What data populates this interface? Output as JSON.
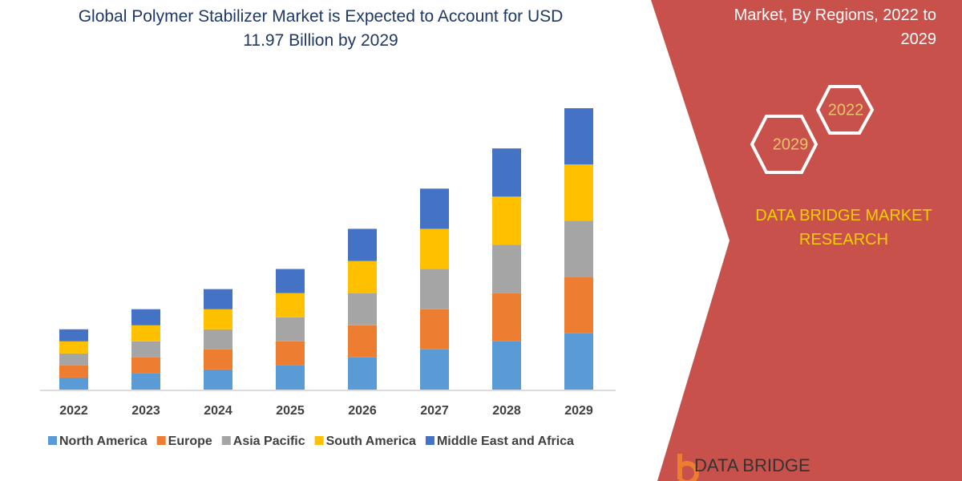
{
  "chart_data": {
    "type": "stacked_bar",
    "title": "Global Polymer Stabilizer Market is Expected to Account for USD 11.97 Billion by 2029",
    "categories": [
      "2022",
      "2023",
      "2024",
      "2025",
      "2026",
      "2027",
      "2028",
      "2029"
    ],
    "series": [
      {
        "name": "North America",
        "color": "#5b9bd5",
        "values": [
          15,
          20,
          25,
          30,
          40,
          50,
          60,
          70
        ]
      },
      {
        "name": "Europe",
        "color": "#ed7d31",
        "values": [
          15,
          20,
          25,
          30,
          40,
          50,
          60,
          70
        ]
      },
      {
        "name": "Asia Pacific",
        "color": "#a5a5a5",
        "values": [
          15,
          20,
          25,
          30,
          40,
          50,
          60,
          70
        ]
      },
      {
        "name": "South America",
        "color": "#ffc000",
        "values": [
          15,
          20,
          25,
          30,
          40,
          50,
          60,
          70
        ]
      },
      {
        "name": "Middle East and Africa",
        "color": "#4472c4",
        "values": [
          15,
          20,
          25,
          30,
          40,
          50,
          60,
          70
        ]
      }
    ],
    "legend": "bottom"
  },
  "side_panel": {
    "heading": "Market, By Regions, 2022 to 2029",
    "hex_labels": [
      "2022",
      "2029"
    ],
    "brand": "DATA BRIDGE MARKET RESEARCH",
    "logo_text": "DATA BRIDGE"
  }
}
